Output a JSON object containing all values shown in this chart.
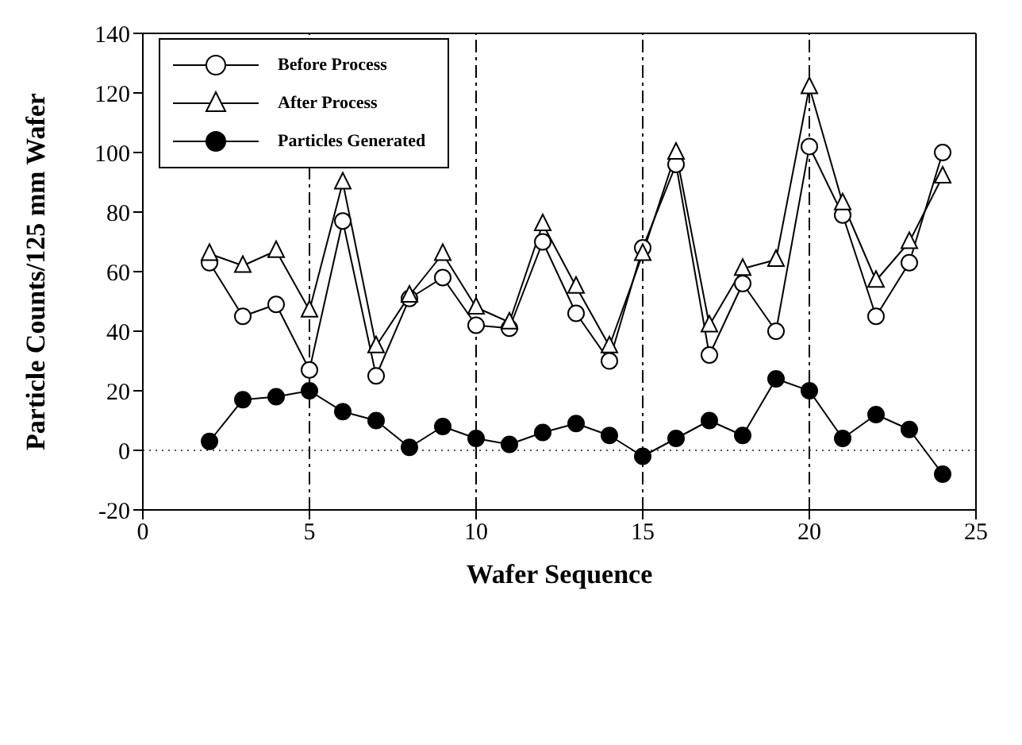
{
  "chart_data": {
    "type": "line",
    "xlabel": "Wafer Sequence",
    "ylabel": "Particle Counts/125 mm Wafer",
    "x": [
      2,
      3,
      4,
      5,
      6,
      7,
      8,
      9,
      10,
      11,
      12,
      13,
      14,
      15,
      16,
      17,
      18,
      19,
      20,
      21,
      22,
      23,
      24
    ],
    "series": [
      {
        "name": "Before Process",
        "color": "#ffffff",
        "marker": "circle",
        "values": [
          63,
          45,
          49,
          27,
          77,
          25,
          51,
          58,
          42,
          41,
          70,
          46,
          30,
          68,
          96,
          32,
          56,
          40,
          102,
          79,
          45,
          63,
          100
        ]
      },
      {
        "name": "After Process",
        "color": "#ffffff",
        "marker": "triangle",
        "values": [
          66,
          62,
          67,
          47,
          90,
          35,
          52,
          66,
          48,
          43,
          76,
          55,
          35,
          66,
          100,
          42,
          61,
          64,
          122,
          83,
          57,
          70,
          92
        ]
      },
      {
        "name": "Particles Generated",
        "color": "#000000",
        "marker": "circle",
        "values": [
          3,
          17,
          18,
          20,
          13,
          10,
          1,
          8,
          4,
          2,
          6,
          9,
          5,
          -2,
          4,
          10,
          5,
          24,
          20,
          4,
          12,
          7,
          -8
        ]
      }
    ],
    "xlim": [
      0,
      25
    ],
    "xticks": [
      0,
      5,
      10,
      15,
      20,
      25
    ],
    "ylim": [
      -20,
      140
    ],
    "yticks": [
      -20,
      0,
      20,
      40,
      60,
      80,
      100,
      120,
      140
    ],
    "ref_lines": [
      {
        "axis": "x",
        "value": 5,
        "line_style": "dashdot"
      },
      {
        "axis": "x",
        "value": 10,
        "line_style": "dashdot"
      },
      {
        "axis": "x",
        "value": 15,
        "line_style": "dashdot"
      },
      {
        "axis": "x",
        "value": 20,
        "line_style": "dashdot"
      },
      {
        "axis": "y",
        "value": 0,
        "line_style": "dotted"
      }
    ],
    "grid": false,
    "legend": "top left",
    "line_style": "solid"
  }
}
